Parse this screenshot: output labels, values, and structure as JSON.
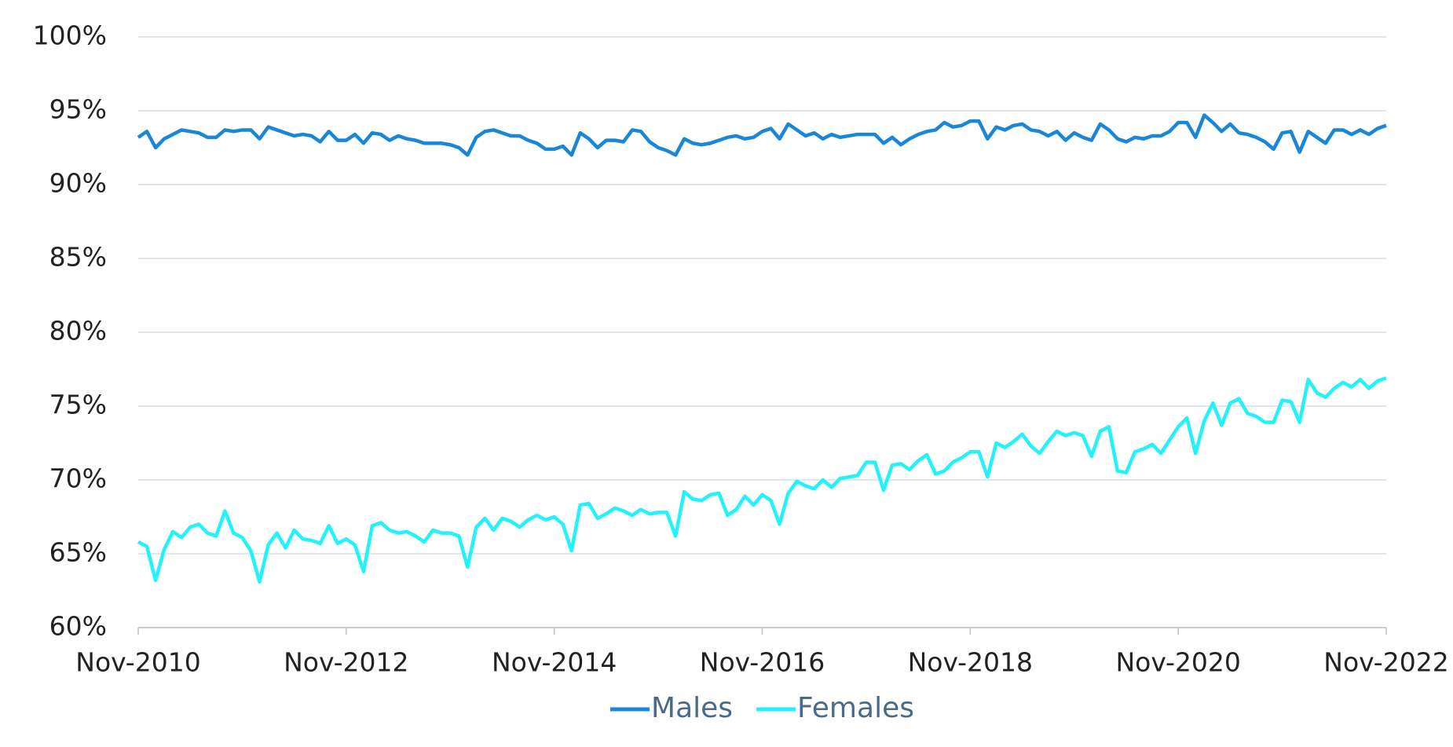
{
  "chart_data": {
    "type": "line",
    "categories": [
      "Nov-2010",
      null,
      null,
      null,
      null,
      null,
      null,
      null,
      null,
      null,
      null,
      null,
      null,
      null,
      null,
      null,
      null,
      null,
      null,
      null,
      null,
      null,
      null,
      null,
      "Nov-2012",
      null,
      null,
      null,
      null,
      null,
      null,
      null,
      null,
      null,
      null,
      null,
      null,
      null,
      null,
      null,
      null,
      null,
      null,
      null,
      null,
      null,
      null,
      null,
      "Nov-2014",
      null,
      null,
      null,
      null,
      null,
      null,
      null,
      null,
      null,
      null,
      null,
      null,
      null,
      null,
      null,
      null,
      null,
      null,
      null,
      null,
      null,
      null,
      null,
      "Nov-2016",
      null,
      null,
      null,
      null,
      null,
      null,
      null,
      null,
      null,
      null,
      null,
      null,
      null,
      null,
      null,
      null,
      null,
      null,
      null,
      null,
      null,
      null,
      null,
      "Nov-2018",
      null,
      null,
      null,
      null,
      null,
      null,
      null,
      null,
      null,
      null,
      null,
      null,
      null,
      null,
      null,
      null,
      null,
      null,
      null,
      null,
      null,
      null,
      null,
      "Nov-2020",
      null,
      null,
      null,
      null,
      null,
      null,
      null,
      null,
      null,
      null,
      null,
      null,
      null,
      null,
      null,
      null,
      null,
      null,
      null,
      null,
      null,
      null,
      null,
      "Nov-2022"
    ],
    "series": [
      {
        "name": "Males",
        "color": "#1a86d8",
        "values": [
          93.2,
          93.6,
          92.5,
          93.1,
          93.4,
          93.7,
          93.6,
          93.5,
          93.2,
          93.2,
          93.7,
          93.6,
          93.7,
          93.7,
          93.1,
          93.9,
          93.7,
          93.5,
          93.3,
          93.4,
          93.3,
          92.9,
          93.6,
          93.0,
          93.0,
          93.4,
          92.8,
          93.5,
          93.4,
          93.0,
          93.3,
          93.1,
          93.0,
          92.8,
          92.8,
          92.8,
          92.7,
          92.5,
          92.0,
          93.2,
          93.6,
          93.7,
          93.5,
          93.3,
          93.3,
          93.0,
          92.8,
          92.4,
          92.4,
          92.6,
          92.0,
          93.5,
          93.1,
          92.5,
          93.0,
          93.0,
          92.9,
          93.7,
          93.6,
          92.9,
          92.5,
          92.3,
          92.0,
          93.1,
          92.8,
          92.7,
          92.8,
          93.0,
          93.2,
          93.3,
          93.1,
          93.2,
          93.6,
          93.8,
          93.1,
          94.1,
          93.7,
          93.3,
          93.5,
          93.1,
          93.4,
          93.2,
          93.3,
          93.4,
          93.4,
          93.4,
          92.8,
          93.2,
          92.7,
          93.1,
          93.4,
          93.6,
          93.7,
          94.2,
          93.9,
          94.0,
          94.3,
          94.3,
          93.1,
          93.9,
          93.7,
          94.0,
          94.1,
          93.7,
          93.6,
          93.3,
          93.6,
          93.0,
          93.5,
          93.2,
          93.0,
          94.1,
          93.7,
          93.1,
          92.9,
          93.2,
          93.1,
          93.3,
          93.3,
          93.6,
          94.2,
          94.2,
          93.2,
          94.7,
          94.2,
          93.6,
          94.1,
          93.5,
          93.4,
          93.2,
          92.9,
          92.4,
          93.5,
          93.6,
          92.2,
          93.6,
          93.2,
          92.8,
          93.7,
          93.7,
          93.4,
          93.7,
          93.4,
          93.8,
          94.0
        ]
      },
      {
        "name": "Females",
        "color": "#22f2fa",
        "values": [
          65.8,
          65.5,
          63.2,
          65.3,
          66.5,
          66.1,
          66.8,
          67.0,
          66.4,
          66.2,
          67.9,
          66.4,
          66.1,
          65.2,
          63.1,
          65.6,
          66.4,
          65.4,
          66.6,
          66.0,
          65.9,
          65.7,
          66.9,
          65.7,
          66.0,
          65.6,
          63.8,
          66.9,
          67.1,
          66.6,
          66.4,
          66.5,
          66.2,
          65.8,
          66.6,
          66.4,
          66.4,
          66.2,
          64.1,
          66.8,
          67.4,
          66.6,
          67.4,
          67.2,
          66.8,
          67.3,
          67.6,
          67.3,
          67.5,
          67.0,
          65.2,
          68.3,
          68.4,
          67.4,
          67.7,
          68.1,
          67.9,
          67.6,
          68.0,
          67.7,
          67.8,
          67.8,
          66.2,
          69.2,
          68.7,
          68.6,
          69.0,
          69.1,
          67.6,
          68.0,
          68.9,
          68.3,
          69.0,
          68.6,
          67.0,
          69.1,
          69.9,
          69.6,
          69.4,
          70.0,
          69.5,
          70.1,
          70.2,
          70.3,
          71.2,
          71.2,
          69.3,
          71.0,
          71.1,
          70.7,
          71.3,
          71.7,
          70.4,
          70.6,
          71.2,
          71.5,
          71.9,
          71.9,
          70.2,
          72.5,
          72.2,
          72.6,
          73.1,
          72.3,
          71.8,
          72.6,
          73.3,
          73.0,
          73.2,
          73.0,
          71.6,
          73.3,
          73.6,
          70.6,
          70.5,
          71.9,
          72.1,
          72.4,
          71.8,
          72.7,
          73.6,
          74.2,
          71.8,
          74.0,
          75.2,
          73.7,
          75.2,
          75.5,
          74.5,
          74.3,
          73.9,
          73.9,
          75.4,
          75.3,
          73.9,
          76.8,
          75.9,
          75.6,
          76.2,
          76.6,
          76.3,
          76.8,
          76.2,
          76.7,
          76.9
        ]
      }
    ],
    "ylim": [
      60,
      100
    ],
    "yticks": [
      {
        "value": 60,
        "label": "60%"
      },
      {
        "value": 65,
        "label": "65%"
      },
      {
        "value": 70,
        "label": "70%"
      },
      {
        "value": 75,
        "label": "75%"
      },
      {
        "value": 80,
        "label": "80%"
      },
      {
        "value": 85,
        "label": "85%"
      },
      {
        "value": 90,
        "label": "90%"
      },
      {
        "value": 95,
        "label": "95%"
      },
      {
        "value": 100,
        "label": "100%"
      }
    ],
    "grid": true,
    "legend": "bottom"
  }
}
